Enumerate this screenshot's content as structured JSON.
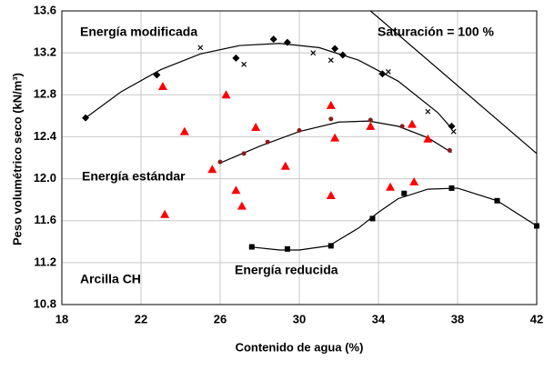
{
  "chart_data": {
    "type": "scatter",
    "x_label": "Contenido de agua (%)",
    "y_label": "Peso volumétrico seco (kN/m³)",
    "xlim": [
      18,
      42
    ],
    "xticks": [
      18,
      22,
      26,
      30,
      34,
      38,
      42
    ],
    "ylim": [
      10.8,
      13.6
    ],
    "yticks": [
      10.8,
      11.2,
      11.6,
      {
        "value": 12,
        "label": "12.0"
      },
      12.4,
      12.8,
      13.2,
      13.6
    ],
    "grid": true,
    "annotations": [
      "Energía modificada",
      "Saturación = 100 %",
      "Energía estándar",
      "Arcilla CH",
      "Energía reducida"
    ],
    "series": [
      {
        "marker": "line",
        "color": "#000000",
        "x": [
          19.2,
          21,
          23,
          25,
          27,
          29,
          31,
          33,
          35,
          37,
          37.7
        ],
        "values": [
          12.58,
          12.83,
          13.04,
          13.19,
          13.27,
          13.29,
          13.25,
          13.13,
          12.93,
          12.63,
          12.48
        ]
      },
      {
        "marker": "line",
        "color": "#000000",
        "x": [
          26,
          28,
          30,
          32,
          33.5,
          35,
          36.5,
          37.7
        ],
        "values": [
          12.15,
          12.31,
          12.45,
          12.54,
          12.55,
          12.5,
          12.39,
          12.25
        ]
      },
      {
        "marker": "line",
        "color": "#000000",
        "x": [
          27.5,
          29,
          30,
          31.5,
          33,
          34,
          35,
          36.5,
          38,
          40,
          42
        ],
        "values": [
          11.35,
          11.32,
          11.32,
          11.36,
          11.53,
          11.68,
          11.81,
          11.9,
          11.91,
          11.79,
          11.55
        ]
      },
      {
        "marker": "line",
        "color": "#000000",
        "x": [
          33.6,
          42
        ],
        "values": [
          13.6,
          12.24
        ]
      },
      {
        "marker": "diamond",
        "color": "#000000",
        "x": [
          19.2,
          22.8,
          26.8,
          28.7,
          29.4,
          31.8,
          32.2,
          34.2,
          37.7
        ],
        "values": [
          12.58,
          12.99,
          13.15,
          13.33,
          13.3,
          13.24,
          13.18,
          13.0,
          12.5
        ]
      },
      {
        "marker": "cross",
        "color": "#000000",
        "x": [
          25,
          27.2,
          30.7,
          31.6,
          34.5,
          36.5,
          37.8
        ],
        "values": [
          13.25,
          13.09,
          13.2,
          13.13,
          13.02,
          12.64,
          12.45
        ]
      },
      {
        "marker": "circle",
        "color": "#8b1a1a",
        "x": [
          26,
          27.2,
          28.4,
          30,
          31.6,
          33.6,
          35.2,
          37.6
        ],
        "values": [
          12.16,
          12.24,
          12.35,
          12.46,
          12.57,
          12.56,
          12.5,
          12.27
        ]
      },
      {
        "marker": "triangle",
        "color": "#ff0000",
        "x": [
          23.1,
          23.2,
          24.2,
          25.6,
          26.3,
          26.8,
          27.1,
          27.8,
          29.3,
          31.6,
          31.8,
          31.6,
          33.6,
          34.6,
          35.7,
          35.8,
          36.5
        ],
        "values": [
          12.88,
          11.66,
          12.45,
          12.09,
          12.8,
          11.89,
          11.74,
          12.49,
          12.12,
          12.7,
          12.39,
          11.84,
          12.5,
          11.92,
          12.52,
          11.97,
          12.38
        ]
      },
      {
        "marker": "square",
        "color": "#000000",
        "x": [
          27.6,
          29.4,
          31.6,
          33.7,
          35.3,
          37.7,
          40,
          42
        ],
        "values": [
          11.35,
          11.33,
          11.36,
          11.62,
          11.86,
          11.91,
          11.79,
          11.55
        ]
      }
    ]
  }
}
